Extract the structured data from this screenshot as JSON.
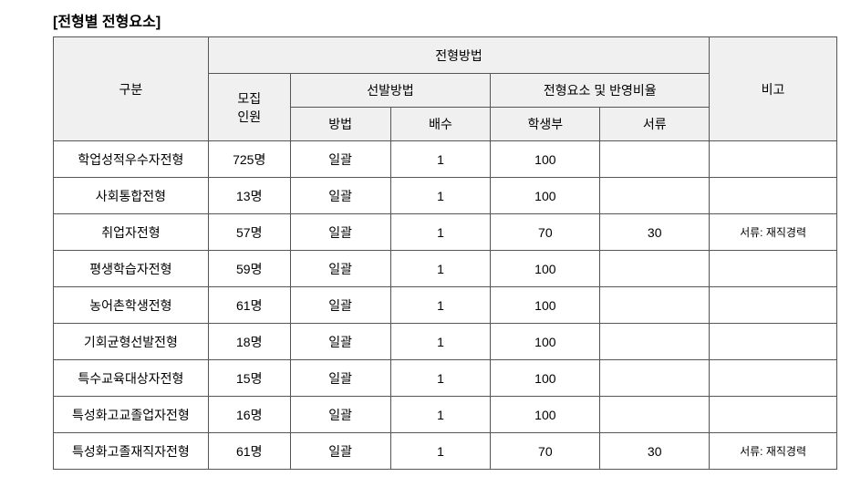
{
  "title": "[전형별 전형요소]",
  "headers": {
    "col_category": "구분",
    "col_method_group": "전형방법",
    "col_note": "비고",
    "col_count": "모집\n인원",
    "col_selection_group": "선발방법",
    "col_selection_method": "방법",
    "col_selection_multiple": "배수",
    "col_element_group": "전형요소 및 반영비율",
    "col_element_record": "학생부",
    "col_element_doc": "서류"
  },
  "rows": [
    {
      "category": "학업성적우수자전형",
      "count": "725명",
      "method": "일괄",
      "multiple": "1",
      "record": "100",
      "doc": "",
      "note": ""
    },
    {
      "category": "사회통합전형",
      "count": "13명",
      "method": "일괄",
      "multiple": "1",
      "record": "100",
      "doc": "",
      "note": ""
    },
    {
      "category": "취업자전형",
      "count": "57명",
      "method": "일괄",
      "multiple": "1",
      "record": "70",
      "doc": "30",
      "note": "서류: 재직경력"
    },
    {
      "category": "평생학습자전형",
      "count": "59명",
      "method": "일괄",
      "multiple": "1",
      "record": "100",
      "doc": "",
      "note": ""
    },
    {
      "category": "농어촌학생전형",
      "count": "61명",
      "method": "일괄",
      "multiple": "1",
      "record": "100",
      "doc": "",
      "note": ""
    },
    {
      "category": "기회균형선발전형",
      "count": "18명",
      "method": "일괄",
      "multiple": "1",
      "record": "100",
      "doc": "",
      "note": ""
    },
    {
      "category": "특수교육대상자전형",
      "count": "15명",
      "method": "일괄",
      "multiple": "1",
      "record": "100",
      "doc": "",
      "note": ""
    },
    {
      "category": "특성화고교졸업자전형",
      "count": "16명",
      "method": "일괄",
      "multiple": "1",
      "record": "100",
      "doc": "",
      "note": ""
    },
    {
      "category": "특성화고졸재직자전형",
      "count": "61명",
      "method": "일괄",
      "multiple": "1",
      "record": "70",
      "doc": "30",
      "note": "서류: 재직경력"
    }
  ],
  "styles": {
    "header_bg": "#f0f0f0",
    "border_color": "#555555",
    "font_family": "Malgun Gothic",
    "base_fontsize": 14,
    "note_fontsize": 12
  }
}
